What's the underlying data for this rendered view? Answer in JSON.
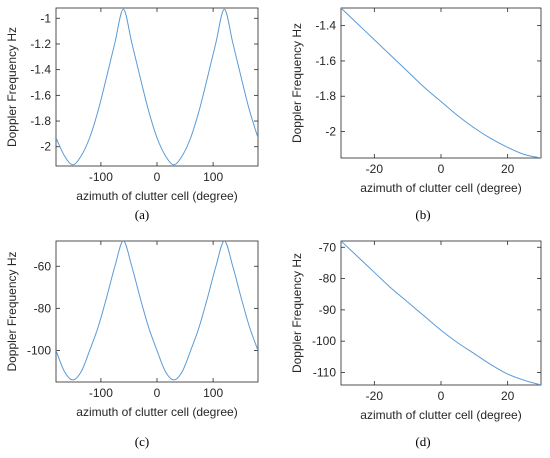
{
  "chart_data": [
    {
      "type": "line",
      "caption": "(a)",
      "xlabel": "azimuth of clutter cell (degree)",
      "ylabel": "Doppler Frequency  Hz",
      "xlim": [
        -180,
        180
      ],
      "ylim": [
        -2.15,
        -0.92
      ],
      "xticks": [
        -100,
        0,
        100
      ],
      "xtick_labels": [
        "-100",
        "0",
        "100"
      ],
      "yticks": [
        -2,
        -1.8,
        -1.6,
        -1.4,
        -1.2,
        -1
      ],
      "ytick_labels": [
        "-2",
        "-1.8",
        "-1.6",
        "-1.4",
        "-1.2",
        "-1"
      ],
      "grid": false,
      "line_color": "#5b9bd5",
      "series": [
        {
          "x": [
            -180,
            -165,
            -150,
            -135,
            -120,
            -105,
            -90,
            -75,
            -60,
            -45,
            -30,
            -15,
            0,
            15,
            30,
            45,
            60,
            75,
            90,
            105,
            120,
            135,
            150,
            165,
            180
          ],
          "values": [
            -1.93,
            -2.07,
            -2.14,
            -2.07,
            -1.93,
            -1.72,
            -1.46,
            -1.19,
            -0.93,
            -1.19,
            -1.46,
            -1.72,
            -1.93,
            -2.07,
            -2.14,
            -2.07,
            -1.93,
            -1.72,
            -1.46,
            -1.19,
            -0.93,
            -1.19,
            -1.46,
            -1.72,
            -1.93
          ]
        }
      ]
    },
    {
      "type": "line",
      "caption": "(b)",
      "xlabel": "azimuth of clutter cell (degree)",
      "ylabel": "Doppler Frequency  Hz",
      "xlim": [
        -30,
        30
      ],
      "ylim": [
        -2.15,
        -1.3
      ],
      "xticks": [
        -20,
        0,
        20
      ],
      "xtick_labels": [
        "-20",
        "0",
        "20"
      ],
      "yticks": [
        -2,
        -1.8,
        -1.6,
        -1.4
      ],
      "ytick_labels": [
        "-2",
        "-1.8",
        "-1.6",
        "-1.4"
      ],
      "grid": false,
      "line_color": "#5b9bd5",
      "series": [
        {
          "x": [
            -30,
            -25,
            -20,
            -15,
            -10,
            -5,
            0,
            5,
            10,
            15,
            20,
            25,
            30
          ],
          "values": [
            -1.3,
            -1.39,
            -1.48,
            -1.57,
            -1.66,
            -1.75,
            -1.83,
            -1.91,
            -1.98,
            -2.04,
            -2.09,
            -2.13,
            -2.15
          ]
        }
      ]
    },
    {
      "type": "line",
      "caption": "(c)",
      "xlabel": "azimuth of clutter cell (degree)",
      "ylabel": "Doppler Frequency  Hz",
      "xlim": [
        -180,
        180
      ],
      "ylim": [
        -115,
        -48
      ],
      "xticks": [
        -100,
        0,
        100
      ],
      "xtick_labels": [
        "-100",
        "0",
        "100"
      ],
      "yticks": [
        -100,
        -80,
        -60
      ],
      "ytick_labels": [
        "-100",
        "-80",
        "-60"
      ],
      "grid": false,
      "line_color": "#5b9bd5",
      "series": [
        {
          "x": [
            -180,
            -165,
            -150,
            -135,
            -120,
            -105,
            -90,
            -75,
            -60,
            -45,
            -30,
            -15,
            0,
            15,
            30,
            45,
            60,
            75,
            90,
            105,
            120,
            135,
            150,
            165,
            180
          ],
          "values": [
            -100,
            -110,
            -114,
            -110,
            -100,
            -89,
            -75,
            -60,
            -48,
            -60,
            -75,
            -89,
            -100,
            -110,
            -114,
            -110,
            -100,
            -89,
            -75,
            -60,
            -48,
            -60,
            -75,
            -89,
            -100
          ]
        }
      ]
    },
    {
      "type": "line",
      "caption": "(d)",
      "xlabel": "azimuth of clutter cell (degree)",
      "ylabel": "Doppler Frequency  Hz",
      "xlim": [
        -30,
        30
      ],
      "ylim": [
        -114,
        -68
      ],
      "xticks": [
        -20,
        0,
        20
      ],
      "xtick_labels": [
        "-20",
        "0",
        "20"
      ],
      "yticks": [
        -110,
        -100,
        -90,
        -80,
        -70
      ],
      "ytick_labels": [
        "-110",
        "-100",
        "-90",
        "-80",
        "-70"
      ],
      "grid": false,
      "line_color": "#5b9bd5",
      "series": [
        {
          "x": [
            -30,
            -25,
            -20,
            -15,
            -10,
            -5,
            0,
            5,
            10,
            15,
            20,
            25,
            30
          ],
          "values": [
            -68,
            -73,
            -78,
            -83,
            -87.5,
            -92,
            -96.5,
            -100.5,
            -104,
            -107.5,
            -110.5,
            -112.5,
            -114
          ]
        }
      ]
    }
  ]
}
